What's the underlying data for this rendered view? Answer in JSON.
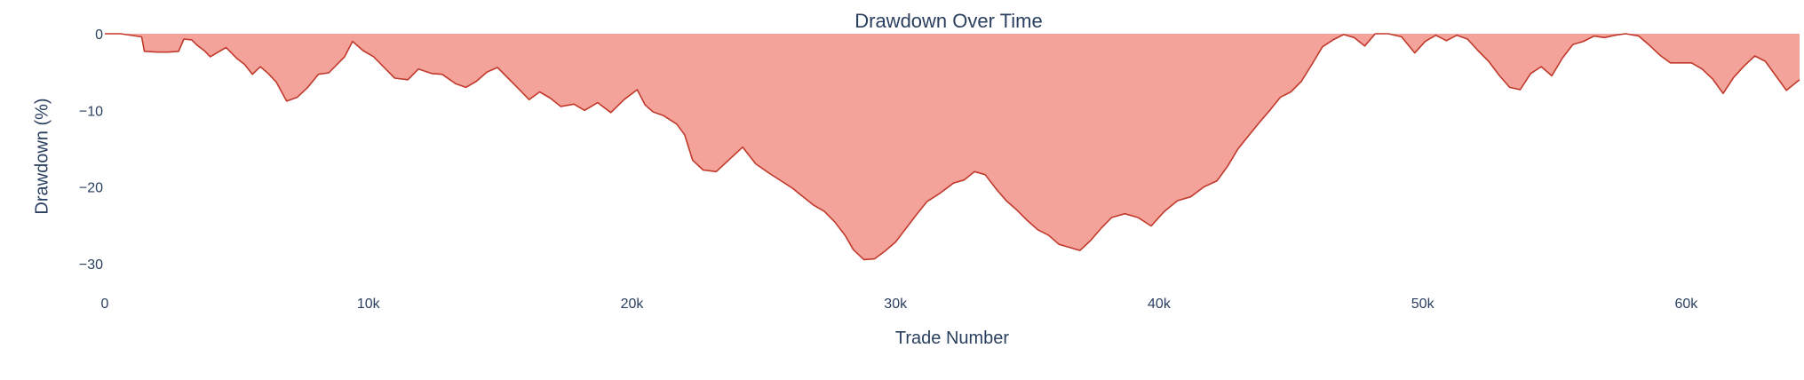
{
  "chart_data": {
    "type": "area",
    "title": "Drawdown Over Time",
    "xlabel": "Trade Number",
    "ylabel": "Drawdown (%)",
    "xlim": [
      0,
      64300
    ],
    "ylim": [
      -32,
      0
    ],
    "x_ticks": [
      0,
      10000,
      20000,
      30000,
      40000,
      50000,
      60000
    ],
    "x_tick_labels": [
      "0",
      "10k",
      "20k",
      "30k",
      "40k",
      "50k",
      "60k"
    ],
    "y_ticks": [
      0,
      -10,
      -20,
      -30
    ],
    "y_tick_labels": [
      "0",
      "−10",
      "−20",
      "−30"
    ],
    "grid": false,
    "legend": "none",
    "fill_color": "#f4a39b",
    "line_color": "#c0392b",
    "series": [
      {
        "x": [
          0,
          600,
          1400,
          1500,
          2000,
          2400,
          2800,
          3000,
          3300,
          3500,
          3800,
          4000,
          4300,
          4600,
          5000,
          5300,
          5600,
          5900,
          6200,
          6500,
          6900,
          7300,
          7700,
          8100,
          8500,
          9100,
          9400,
          9800,
          10200,
          10600,
          11000,
          11500,
          11900,
          12400,
          12800,
          13300,
          13700,
          14100,
          14500,
          14900,
          15300,
          15700,
          16100,
          16500,
          16900,
          17300,
          17800,
          18200,
          18700,
          19200,
          19700,
          20200,
          20500,
          20800,
          21200,
          21700,
          22000,
          22300,
          22700,
          23200,
          23700,
          24200,
          24700,
          25200,
          25700,
          26100,
          26500,
          26900,
          27300,
          27700,
          28100,
          28400,
          28800,
          29200,
          29600,
          30000,
          30400,
          30800,
          31200,
          31700,
          32200,
          32600,
          33000,
          33400,
          33800,
          34200,
          34600,
          35000,
          35400,
          35800,
          36200,
          36600,
          37000,
          37400,
          37800,
          38200,
          38700,
          39200,
          39700,
          40200,
          40700,
          41200,
          41700,
          42200,
          42600,
          43000,
          43400,
          43800,
          44200,
          44600,
          45000,
          45400,
          45800,
          46200,
          46600,
          47000,
          47400,
          47800,
          48200,
          48700,
          49200,
          49700,
          50100,
          50500,
          50900,
          51300,
          51700,
          52100,
          52500,
          52900,
          53300,
          53700,
          54100,
          54500,
          54900,
          55300,
          55700,
          56100,
          56500,
          56900,
          57300,
          57700,
          58200,
          58600,
          59000,
          59400,
          59800,
          60200,
          60600,
          61000,
          61400,
          61800,
          62200,
          62600,
          63000,
          63400,
          63800,
          64300
        ],
        "y": [
          0,
          0,
          -0.4,
          -2.3,
          -2.4,
          -2.4,
          -2.3,
          -0.7,
          -0.8,
          -1.5,
          -2.3,
          -3.0,
          -2.4,
          -1.8,
          -3.2,
          -4.0,
          -5.3,
          -4.3,
          -5.2,
          -6.3,
          -8.8,
          -8.3,
          -7.0,
          -5.3,
          -5.1,
          -3.0,
          -1.0,
          -2.2,
          -3.0,
          -4.4,
          -5.8,
          -6.0,
          -4.6,
          -5.2,
          -5.3,
          -6.5,
          -7.0,
          -6.2,
          -5.0,
          -4.4,
          -5.8,
          -7.2,
          -8.6,
          -7.6,
          -8.4,
          -9.5,
          -9.2,
          -10.0,
          -9.0,
          -10.3,
          -8.6,
          -7.3,
          -9.3,
          -10.2,
          -10.7,
          -11.8,
          -13.2,
          -16.5,
          -17.8,
          -18.0,
          -16.4,
          -14.8,
          -17.0,
          -18.2,
          -19.3,
          -20.2,
          -21.3,
          -22.4,
          -23.2,
          -24.6,
          -26.4,
          -28.2,
          -29.5,
          -29.4,
          -28.4,
          -27.2,
          -25.4,
          -23.6,
          -21.9,
          -20.8,
          -19.5,
          -19.1,
          -18.0,
          -18.4,
          -20.2,
          -21.8,
          -23.0,
          -24.4,
          -25.6,
          -26.3,
          -27.5,
          -27.9,
          -28.3,
          -27.0,
          -25.4,
          -24.0,
          -23.5,
          -24.0,
          -25.1,
          -23.2,
          -21.8,
          -21.3,
          -20.0,
          -19.2,
          -17.3,
          -15.0,
          -13.3,
          -11.6,
          -10.0,
          -8.3,
          -7.6,
          -6.2,
          -4.0,
          -1.7,
          -0.8,
          -0.1,
          -0.5,
          -1.6,
          0,
          0,
          -0.4,
          -2.5,
          -1.0,
          -0.2,
          -0.9,
          -0.2,
          -0.7,
          -2.2,
          -3.6,
          -5.4,
          -7.0,
          -7.3,
          -5.2,
          -4.3,
          -5.5,
          -3.2,
          -1.4,
          -1.0,
          -0.3,
          -0.5,
          -0.2,
          0,
          -0.3,
          -1.5,
          -2.8,
          -3.8,
          -3.8,
          -3.8,
          -4.6,
          -5.9,
          -7.8,
          -5.7,
          -4.2,
          -2.9,
          -3.6,
          -5.5,
          -7.4,
          -6.0
        ]
      }
    ]
  }
}
